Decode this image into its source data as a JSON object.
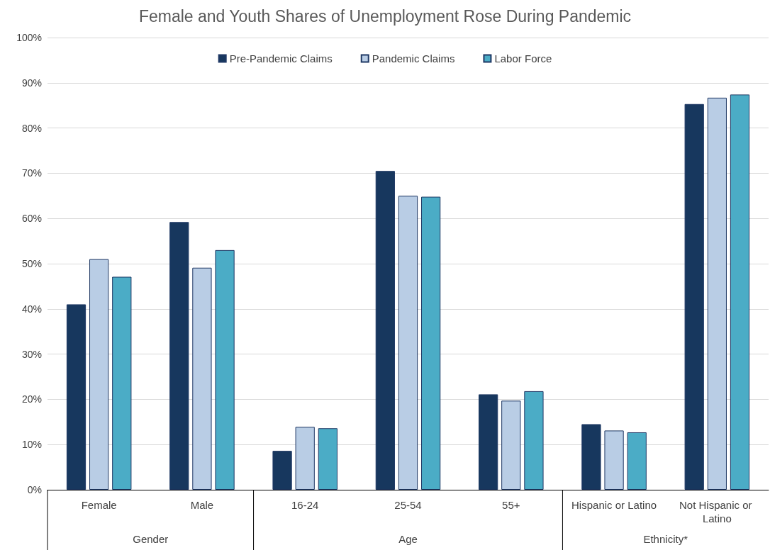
{
  "chart_data": {
    "type": "bar",
    "title": "Female and Youth Shares of Unemployment Rose During Pandemic",
    "categories": [
      "Female",
      "Male",
      "16-24",
      "25-54",
      "55+",
      "Hispanic or Latino",
      "Not Hispanic or Latino"
    ],
    "series": [
      {
        "name": "Pre-Pandemic Claims",
        "color": "#17375e",
        "values": [
          41,
          59.2,
          8.6,
          70.5,
          21.1,
          14.5,
          85.3
        ]
      },
      {
        "name": "Pandemic Claims",
        "color": "#b9cde5",
        "values": [
          51,
          49.1,
          13.9,
          65,
          19.7,
          13.1,
          86.7
        ]
      },
      {
        "name": "Labor Force",
        "color": "#4bacc6",
        "values": [
          47.1,
          53,
          13.6,
          64.8,
          21.8,
          12.7,
          87.4
        ]
      }
    ],
    "ylim": [
      0,
      100
    ],
    "yticks": [
      {
        "value": 0,
        "label": "0%"
      },
      {
        "value": 10,
        "label": "10%"
      },
      {
        "value": 20,
        "label": "20%"
      },
      {
        "value": 30,
        "label": "30%"
      },
      {
        "value": 40,
        "label": "40%"
      },
      {
        "value": 50,
        "label": "50%"
      },
      {
        "value": 60,
        "label": "60%"
      },
      {
        "value": 70,
        "label": "70%"
      },
      {
        "value": 80,
        "label": "80%"
      },
      {
        "value": 90,
        "label": "90%"
      },
      {
        "value": 100,
        "label": "100%"
      }
    ],
    "annotations": [
      "Gender",
      "Age",
      "Ethnicity*"
    ],
    "grid": "y",
    "legend": "top"
  }
}
